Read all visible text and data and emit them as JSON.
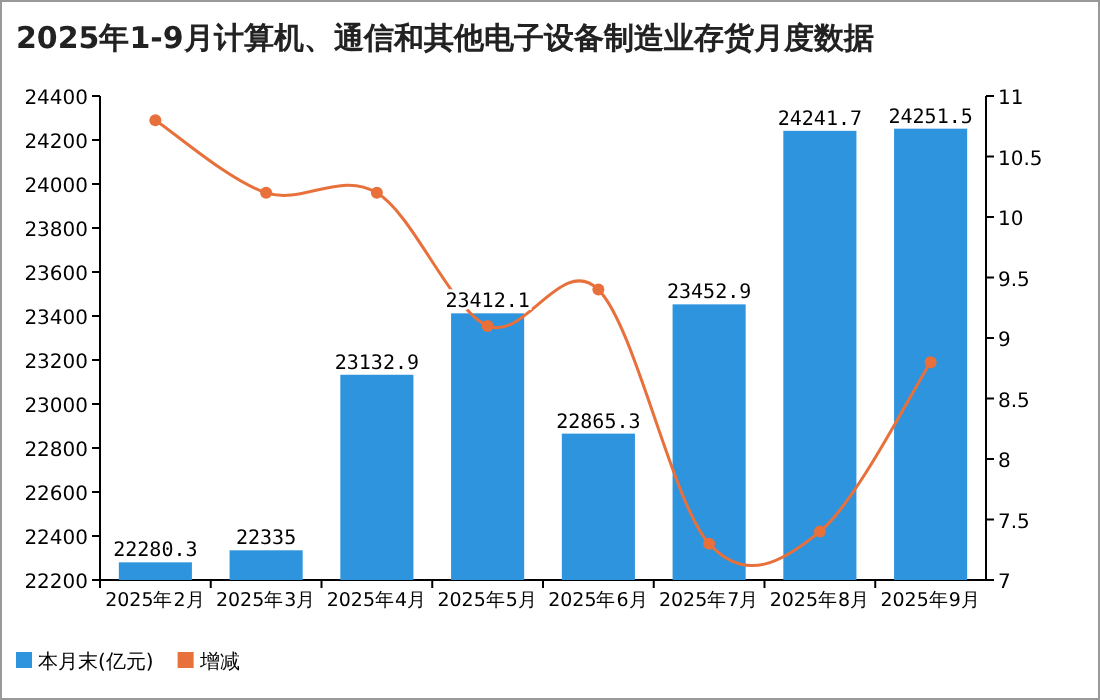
{
  "chart_data": {
    "type": "bar",
    "title": "2025年1-9月计算机、通信和其他电子设备制造业存货月度数据",
    "categories": [
      "2025年2月",
      "2025年3月",
      "2025年4月",
      "2025年5月",
      "2025年6月",
      "2025年7月",
      "2025年8月",
      "2025年9月"
    ],
    "series": [
      {
        "name": "本月末(亿元)",
        "color": "#2e94dd",
        "values": [
          22280.3,
          22335,
          23132.9,
          23412.1,
          22865.3,
          23452.9,
          24241.7,
          24251.5
        ],
        "value_labels": [
          "22280.3",
          "22335",
          "23132.9",
          "23412.1",
          "22865.3",
          "23452.9",
          "24241.7",
          "24251.5"
        ]
      },
      {
        "name": "增减",
        "type": "line",
        "axis": "y2",
        "color": "#e8703a",
        "marker": "circle",
        "values": [
          10.8,
          10.2,
          10.2,
          9.1,
          9.4,
          7.3,
          7.4,
          8.8
        ]
      }
    ],
    "ylim": [
      22200,
      24400
    ],
    "yticks": [
      22200,
      22400,
      22600,
      22800,
      23000,
      23200,
      23400,
      23600,
      23800,
      24000,
      24200,
      24400
    ],
    "y2lim": [
      7,
      11
    ],
    "y2ticks": [
      7,
      7.5,
      8,
      8.5,
      9,
      9.5,
      10,
      10.5,
      11
    ],
    "legend": "bottom left"
  }
}
